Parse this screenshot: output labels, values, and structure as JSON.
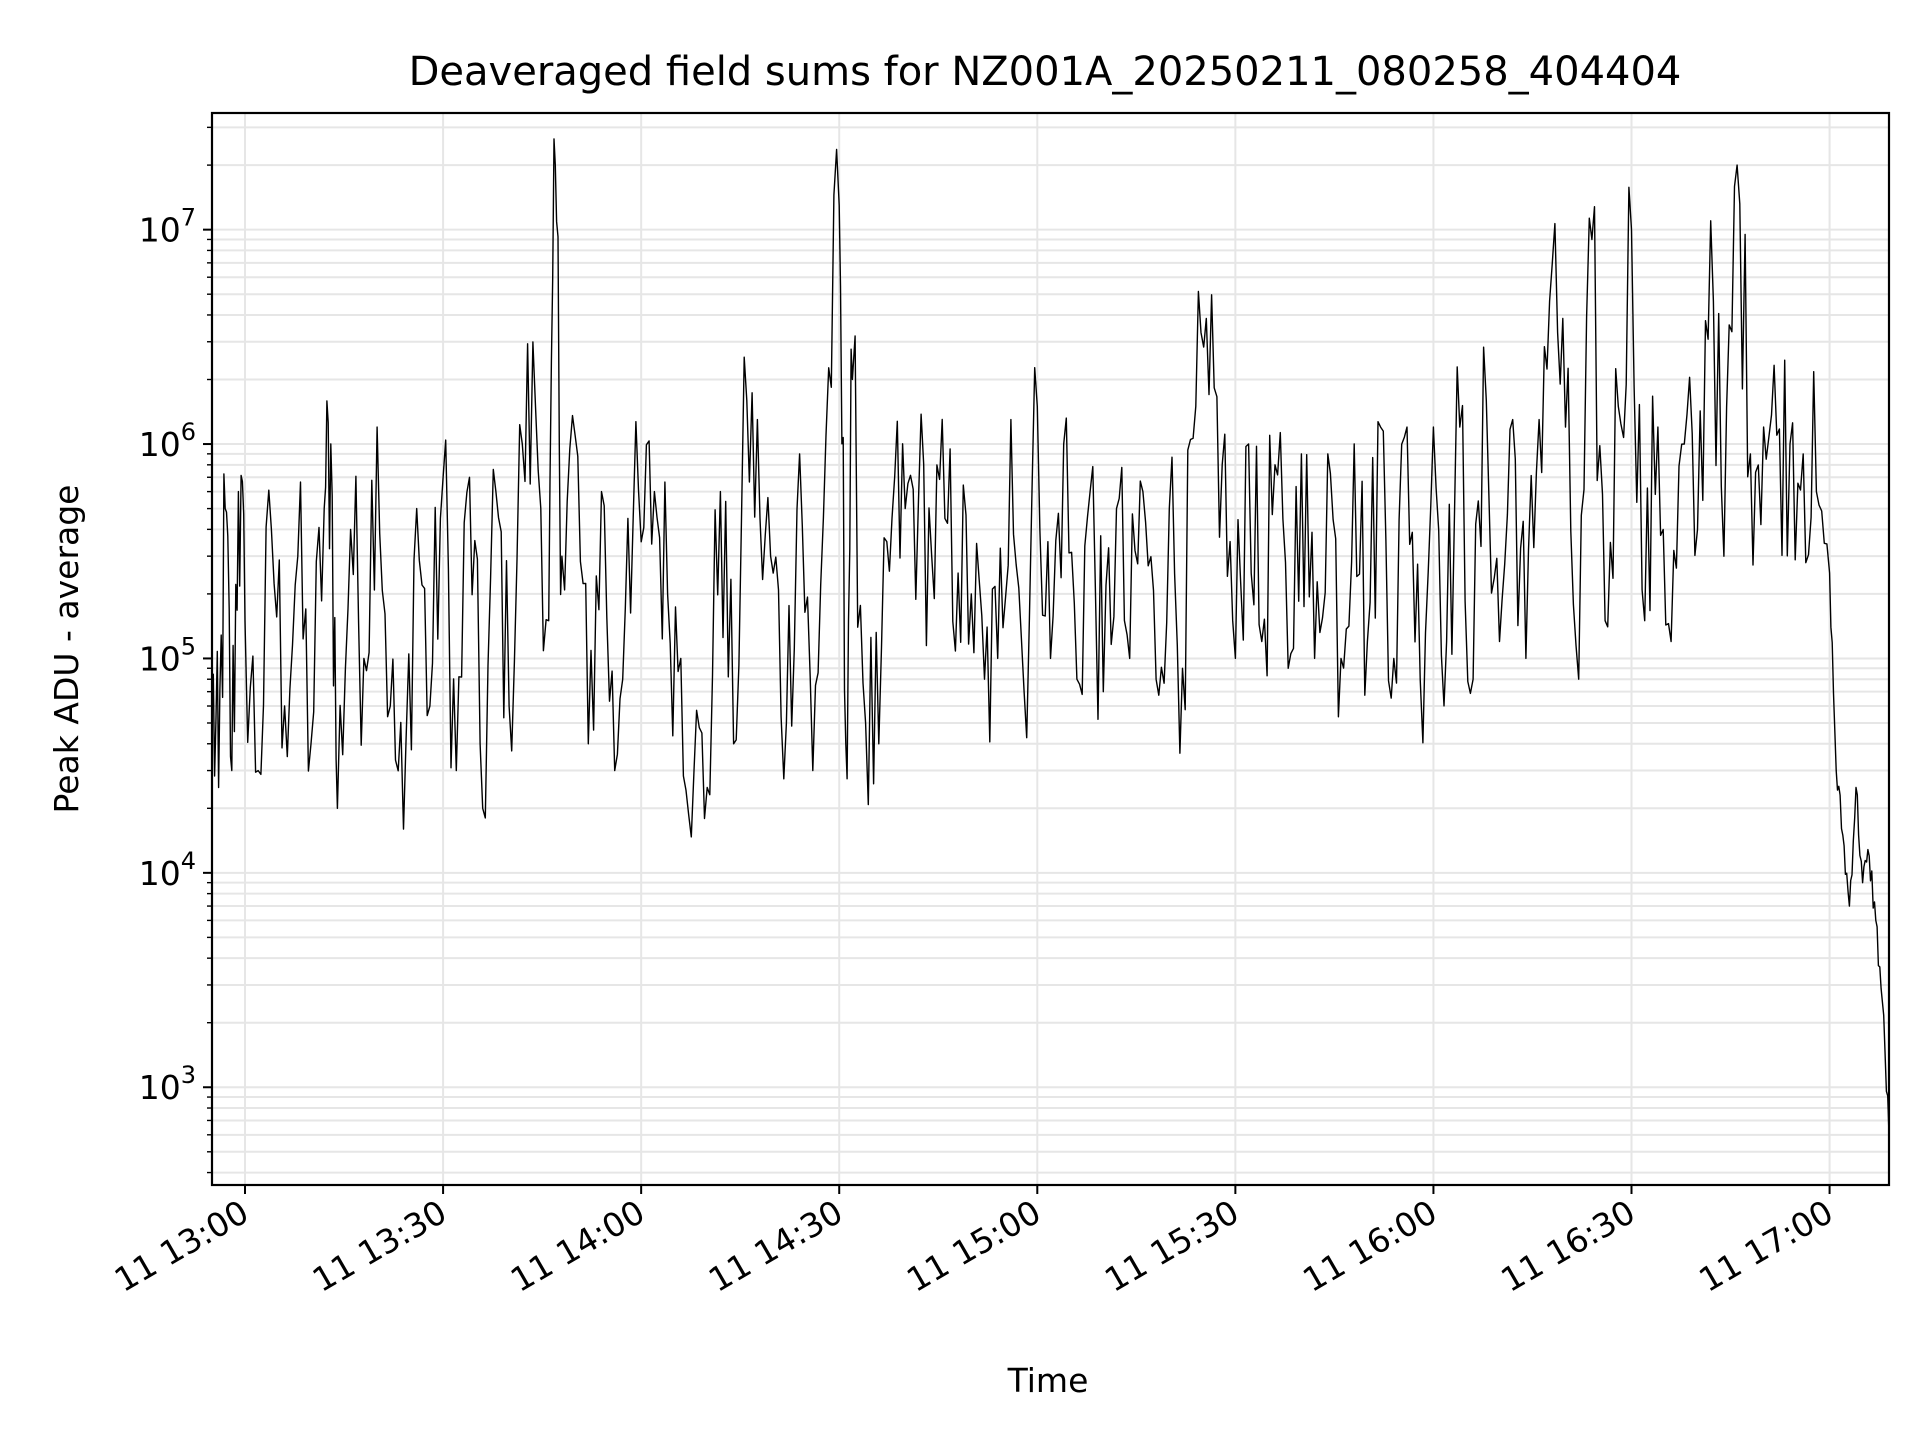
{
  "chart_data": {
    "type": "line",
    "title": "Deaveraged field sums for NZ001A_20250211_080258_404404",
    "xlabel": "Time",
    "ylabel": "Peak ADU - average",
    "yscale": "log",
    "grid": true,
    "xlim": [
      "12:55",
      "17:09"
    ],
    "ylim": [
      350,
      35000000
    ],
    "x_ticks": [
      "11 13:00",
      "11 13:30",
      "11 14:00",
      "11 14:30",
      "11 15:00",
      "11 15:30",
      "11 16:00",
      "11 16:30",
      "11 17:00"
    ],
    "y_ticks": [
      {
        "base": "10",
        "exp": "3",
        "value": 1000
      },
      {
        "base": "10",
        "exp": "4",
        "value": 10000
      },
      {
        "base": "10",
        "exp": "5",
        "value": 100000
      },
      {
        "base": "10",
        "exp": "6",
        "value": 1000000
      },
      {
        "base": "10",
        "exp": "7",
        "value": 10000000
      }
    ],
    "line_color": "#000000",
    "series": [
      {
        "x": [
          "12:55",
          "12:56",
          "12:57",
          "12:58",
          "12:59",
          "13:00",
          "13:02",
          "13:04",
          "13:06",
          "13:08",
          "13:10",
          "13:12",
          "13:13",
          "13:14",
          "13:16",
          "13:18",
          "13:20",
          "13:22",
          "13:24",
          "13:26",
          "13:28",
          "13:30",
          "13:32",
          "13:34",
          "13:36",
          "13:38",
          "13:40",
          "13:42",
          "13:44",
          "13:46",
          "13:47",
          "13:48",
          "13:50",
          "13:52",
          "13:54",
          "13:56",
          "13:58",
          "14:00",
          "14:02",
          "14:04",
          "14:06",
          "14:08",
          "14:10",
          "14:12",
          "14:14",
          "14:16",
          "14:18",
          "14:20",
          "14:22",
          "14:24",
          "14:26",
          "14:28",
          "14:30",
          "14:31",
          "14:32",
          "14:34",
          "14:36",
          "14:38",
          "14:40",
          "14:42",
          "14:44",
          "14:46",
          "14:48",
          "14:50",
          "14:52",
          "14:54",
          "14:56",
          "14:58",
          "15:00",
          "15:02",
          "15:04",
          "15:06",
          "15:08",
          "15:10",
          "15:12",
          "15:14",
          "15:16",
          "15:18",
          "15:20",
          "15:22",
          "15:24",
          "15:26",
          "15:28",
          "15:30",
          "15:32",
          "15:34",
          "15:36",
          "15:38",
          "15:40",
          "15:42",
          "15:44",
          "15:46",
          "15:48",
          "15:50",
          "15:52",
          "15:54",
          "15:56",
          "15:58",
          "16:00",
          "16:02",
          "16:04",
          "16:06",
          "16:08",
          "16:10",
          "16:12",
          "16:14",
          "16:16",
          "16:18",
          "16:20",
          "16:22",
          "16:24",
          "16:26",
          "16:28",
          "16:30",
          "16:32",
          "16:34",
          "16:36",
          "16:38",
          "16:40",
          "16:42",
          "16:44",
          "16:46",
          "16:48",
          "16:50",
          "16:52",
          "16:54",
          "16:56",
          "16:58",
          "17:00",
          "17:01",
          "17:02",
          "17:03",
          "17:04",
          "17:05",
          "17:06",
          "17:07",
          "17:08",
          "17:09"
        ],
        "y": [
          70000,
          25000,
          500000,
          30000,
          600000,
          150000,
          30000,
          400000,
          60000,
          300000,
          40000,
          500000,
          1000000,
          20000,
          400000,
          100000,
          1200000,
          60000,
          16000,
          500000,
          60000,
          700000,
          30000,
          700000,
          20000,
          600000,
          60000,
          1000000,
          1500000,
          150000,
          20000000,
          300000,
          1100000,
          40000,
          600000,
          30000,
          450000,
          350000,
          600000,
          200000,
          100000,
          30000,
          25000,
          600000,
          40000,
          1600000,
          450000,
          250000,
          50000,
          900000,
          30000,
          1100000,
          13000000,
          40000,
          2000000,
          50000,
          40000,
          450000,
          500000,
          550000,
          300000,
          450000,
          250000,
          200000,
          80000,
          100000,
          1300000,
          70000,
          1500000,
          100000,
          1000000,
          80000,
          600000,
          70000,
          500000,
          100000,
          600000,
          80000,
          500000,
          90000,
          1500000,
          1700000,
          800000,
          100000,
          1000000,
          120000,
          800000,
          90000,
          900000,
          100000,
          900000,
          100000,
          1000000,
          120000,
          1200000,
          100000,
          1200000,
          80000,
          1200000,
          120000,
          1200000,
          80000,
          1600000,
          120000,
          1300000,
          100000,
          1300000,
          7000000,
          1200000,
          80000,
          9000000,
          150000,
          1500000,
          10000000,
          150000,
          1200000,
          120000,
          1000000,
          400000,
          11000000,
          300000,
          20000000,
          900000,
          1200000,
          1100000,
          1000000,
          900000,
          600000,
          250000,
          30000,
          15000,
          7000,
          25000,
          9000,
          12000,
          6000,
          2500,
          600
        ]
      }
    ]
  }
}
